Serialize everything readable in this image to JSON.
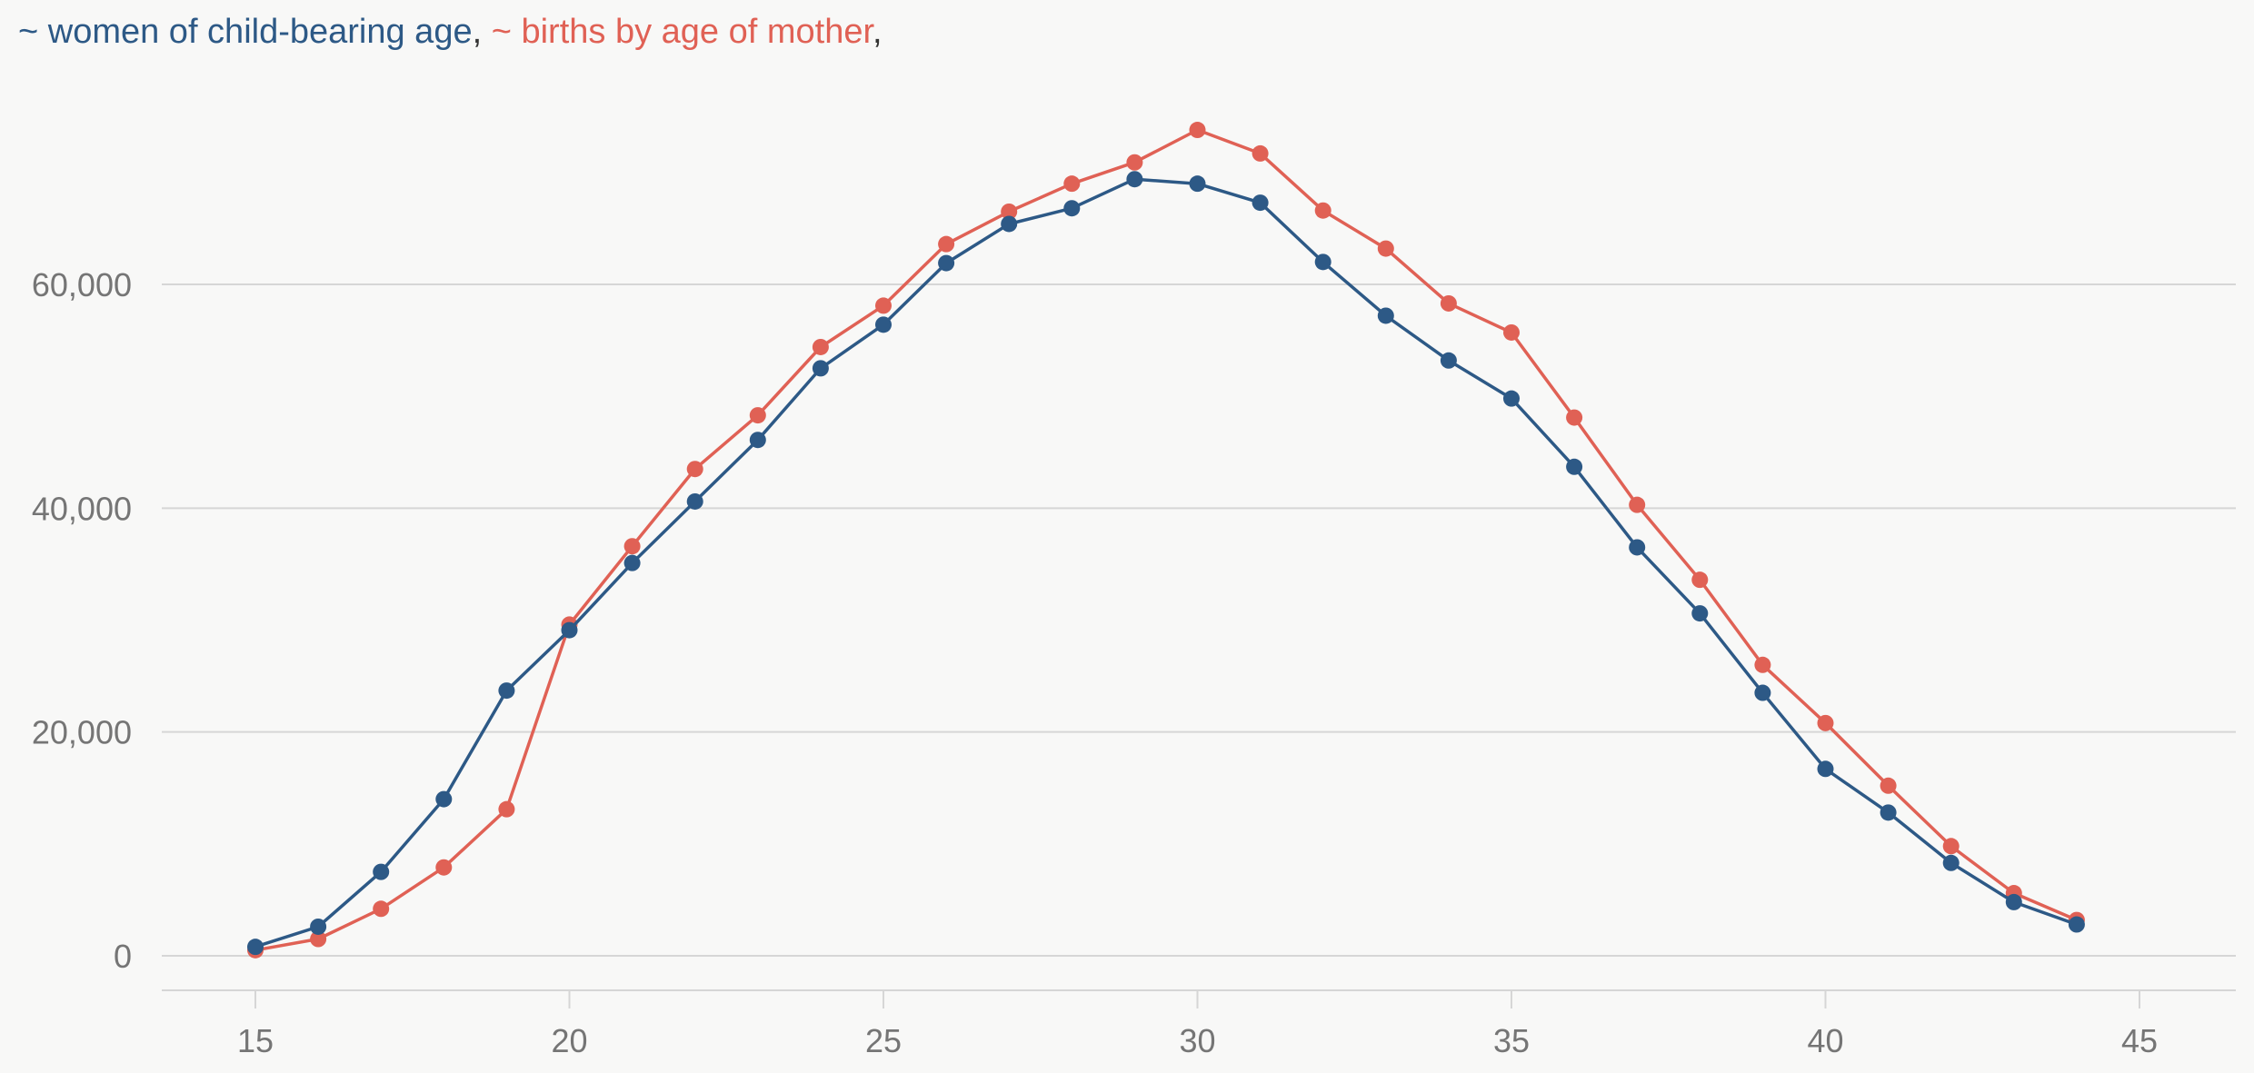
{
  "legend": {
    "women_label": "~ women of child-bearing age",
    "births_label": "~ births by age of mother",
    "separator": ","
  },
  "colors": {
    "women": "#2d5986",
    "births": "#e06155",
    "grid": "#d6d6d6",
    "axis_text": "#757575",
    "background": "#f8f8f7"
  },
  "chart_data": {
    "type": "line",
    "title": "",
    "xlabel": "",
    "ylabel": "",
    "xlim": [
      13.5,
      46.5
    ],
    "ylim": [
      0,
      70000
    ],
    "x_ticks": [
      15,
      20,
      25,
      30,
      35,
      40,
      45
    ],
    "x_tick_labels": [
      "15",
      "20",
      "25",
      "30",
      "35",
      "40",
      "45"
    ],
    "y_ticks": [
      0,
      20000,
      40000,
      60000
    ],
    "y_tick_labels": [
      "0",
      "20,000",
      "40,000",
      "60,000"
    ],
    "grid": true,
    "legend_position": "top-left",
    "x": [
      15,
      16,
      17,
      18,
      19,
      20,
      21,
      22,
      23,
      24,
      25,
      26,
      27,
      28,
      29,
      30,
      31,
      32,
      33,
      34,
      35,
      36,
      37,
      38,
      39,
      40,
      41,
      42,
      43,
      44
    ],
    "series": [
      {
        "name": "~ women of child-bearing age",
        "color": "#2d5986",
        "values": [
          800,
          2600,
          7500,
          14000,
          23700,
          29100,
          35100,
          40600,
          46100,
          52500,
          56400,
          61900,
          65400,
          66800,
          69400,
          69000,
          67300,
          62000,
          57200,
          53200,
          49800,
          43700,
          36500,
          30600,
          23500,
          16700,
          12800,
          8300,
          4800,
          2800
        ]
      },
      {
        "name": "~ births by age of mother",
        "color": "#e06155",
        "values": [
          500,
          1500,
          4200,
          7900,
          13100,
          29600,
          36600,
          43500,
          48300,
          54400,
          58100,
          63600,
          66500,
          69000,
          70900,
          73800,
          71700,
          66600,
          63200,
          58300,
          55700,
          48100,
          40300,
          33600,
          26000,
          20800,
          15200,
          9800,
          5600,
          3200
        ]
      }
    ]
  }
}
